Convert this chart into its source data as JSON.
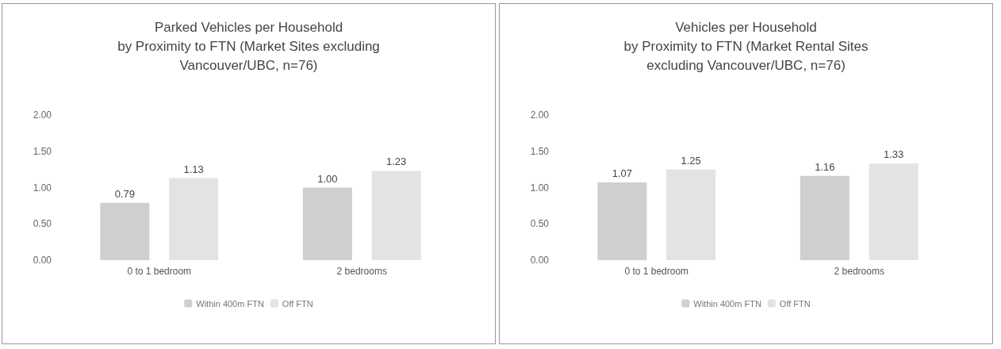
{
  "chart_data": [
    {
      "type": "bar",
      "title": "Parked Vehicles per Household\nby Proximity to FTN (Market Sites excluding\nVancouver/UBC, n=76)",
      "categories": [
        "0 to 1 bedroom",
        "2 bedrooms"
      ],
      "series": [
        {
          "name": "Within 400m FTN",
          "color": "#cfcfcf",
          "values": [
            0.79,
            1.0
          ],
          "value_labels": [
            "0.79",
            "1.00"
          ]
        },
        {
          "name": "Off FTN",
          "color": "#e3e3e3",
          "values": [
            1.13,
            1.23
          ],
          "value_labels": [
            "1.13",
            "1.23"
          ]
        }
      ],
      "ylim": [
        0,
        2
      ],
      "yticks": [
        {
          "value": 0,
          "label": "0.00"
        },
        {
          "value": 0.5,
          "label": "0.50"
        },
        {
          "value": 1,
          "label": "1.00"
        },
        {
          "value": 1.5,
          "label": "1.50"
        },
        {
          "value": 2,
          "label": "2.00"
        }
      ],
      "grid": false,
      "legend": "bottom"
    },
    {
      "type": "bar",
      "title": "Vehicles per Household\nby Proximity to FTN (Market Rental Sites\nexcluding Vancouver/UBC, n=76)",
      "categories": [
        "0 to 1 bedroom",
        "2 bedrooms"
      ],
      "series": [
        {
          "name": "Within 400m FTN",
          "color": "#cfcfcf",
          "values": [
            1.07,
            1.16
          ],
          "value_labels": [
            "1.07",
            "1.16"
          ]
        },
        {
          "name": "Off FTN",
          "color": "#e3e3e3",
          "values": [
            1.25,
            1.33
          ],
          "value_labels": [
            "1.25",
            "1.33"
          ]
        }
      ],
      "ylim": [
        0,
        2
      ],
      "yticks": [
        {
          "value": 0,
          "label": "0.00"
        },
        {
          "value": 0.5,
          "label": "0.50"
        },
        {
          "value": 1,
          "label": "1.00"
        },
        {
          "value": 1.5,
          "label": "1.50"
        },
        {
          "value": 2,
          "label": "2.00"
        }
      ],
      "grid": false,
      "legend": "bottom"
    }
  ]
}
